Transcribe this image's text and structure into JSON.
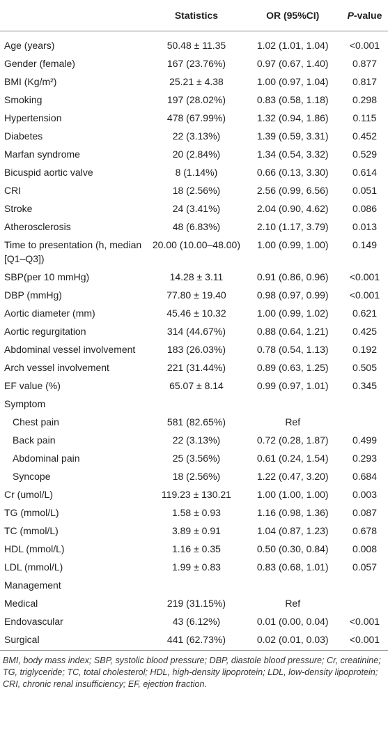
{
  "header": {
    "columns": [
      "Statistics",
      "OR (95%CI)"
    ],
    "p_value": {
      "italic": "P",
      "text": "-value"
    }
  },
  "rows": [
    {
      "label": "Age (years)",
      "stats": "50.48 ± 11.35",
      "or": "1.02 (1.01, 1.04)",
      "p": "<0.001"
    },
    {
      "label": "Gender (female)",
      "stats": "167 (23.76%)",
      "or": "0.97 (0.67, 1.40)",
      "p": "0.877"
    },
    {
      "label": "BMI (Kg/m²)",
      "stats": "25.21 ± 4.38",
      "or": "1.00 (0.97, 1.04)",
      "p": "0.817"
    },
    {
      "label": "Smoking",
      "stats": "197 (28.02%)",
      "or": "0.83 (0.58, 1.18)",
      "p": "0.298"
    },
    {
      "label": "Hypertension",
      "stats": "478 (67.99%)",
      "or": "1.32 (0.94, 1.86)",
      "p": "0.115"
    },
    {
      "label": "Diabetes",
      "stats": "22 (3.13%)",
      "or": "1.39 (0.59, 3.31)",
      "p": "0.452"
    },
    {
      "label": "Marfan syndrome",
      "stats": "20 (2.84%)",
      "or": "1.34 (0.54, 3.32)",
      "p": "0.529"
    },
    {
      "label": "Bicuspid aortic valve",
      "stats": "8 (1.14%)",
      "or": "0.66 (0.13, 3.30)",
      "p": "0.614"
    },
    {
      "label": "CRI",
      "stats": "18 (2.56%)",
      "or": "2.56 (0.99, 6.56)",
      "p": "0.051"
    },
    {
      "label": "Stroke",
      "stats": "24 (3.41%)",
      "or": "2.04 (0.90, 4.62)",
      "p": "0.086"
    },
    {
      "label": "Atherosclerosis",
      "stats": "48 (6.83%)",
      "or": "2.10 (1.17, 3.79)",
      "p": "0.013"
    },
    {
      "label": "Time to presentation (h, median [Q1–Q3])",
      "stats": "20.00 (10.00–48.00)",
      "or": "1.00 (0.99, 1.00)",
      "p": "0.149"
    },
    {
      "label": "SBP(per 10 mmHg)",
      "stats": "14.28 ± 3.11",
      "or": "0.91 (0.86, 0.96)",
      "p": "<0.001"
    },
    {
      "label": "DBP (mmHg)",
      "stats": "77.80 ± 19.40",
      "or": "0.98 (0.97, 0.99)",
      "p": "<0.001"
    },
    {
      "label": "Aortic diameter (mm)",
      "stats": "45.46 ± 10.32",
      "or": "1.00 (0.99, 1.02)",
      "p": "0.621"
    },
    {
      "label": "Aortic regurgitation",
      "stats": "314 (44.67%)",
      "or": "0.88 (0.64, 1.21)",
      "p": "0.425"
    },
    {
      "label": "Abdominal vessel involvement",
      "stats": "183 (26.03%)",
      "or": "0.78 (0.54, 1.13)",
      "p": "0.192"
    },
    {
      "label": "Arch vessel involvement",
      "stats": "221 (31.44%)",
      "or": "0.89 (0.63, 1.25)",
      "p": "0.505"
    },
    {
      "label": "EF value (%)",
      "stats": "65.07 ± 8.14",
      "or": "0.99 (0.97, 1.01)",
      "p": "0.345"
    },
    {
      "label": "Symptom",
      "subrows": [
        {
          "label": "Chest pain",
          "stats": "581 (82.65%)",
          "or": "Ref"
        },
        {
          "label": "Back pain",
          "stats": "22 (3.13%)",
          "or": "0.72 (0.28, 1.87)",
          "p": "0.499"
        },
        {
          "label": "Abdominal pain",
          "stats": "25 (3.56%)",
          "or": "0.61 (0.24, 1.54)",
          "p": "0.293"
        },
        {
          "label": "Syncope",
          "stats": "18 (2.56%)",
          "or": "1.22 (0.47, 3.20)",
          "p": "0.684"
        }
      ]
    },
    {
      "label": "Cr (umol/L)",
      "stats": "119.23 ± 130.21",
      "or": "1.00 (1.00, 1.00)",
      "p": "0.003"
    },
    {
      "label": "TG (mmol/L)",
      "stats": "1.58 ± 0.93",
      "or": "1.16 (0.98, 1.36)",
      "p": "0.087"
    },
    {
      "label": "TC (mmol/L)",
      "stats": "3.89 ± 0.91",
      "or": "1.04 (0.87, 1.23)",
      "p": "0.678"
    },
    {
      "label": "HDL (mmol/L)",
      "stats": "1.16 ± 0.35",
      "or": "0.50 (0.30, 0.84)",
      "p": "0.008"
    },
    {
      "label": "LDL (mmol/L)",
      "stats": "1.99 ± 0.83",
      "or": "0.83 (0.68, 1.01)",
      "p": "0.057"
    },
    {
      "label": "Management"
    },
    {
      "label": "Medical",
      "stats": "219 (31.15%)",
      "or": "Ref"
    },
    {
      "label": "Endovascular",
      "stats": "43 (6.12%)",
      "or": "0.01 (0.00, 0.04)",
      "p": "<0.001"
    },
    {
      "label": "Surgical",
      "stats": "441 (62.73%)",
      "or": "0.02 (0.01, 0.03)",
      "p": "<0.001"
    }
  ],
  "footnote": "BMI, body mass index; SBP, systolic blood pressure; DBP, diastole blood pressure; Cr, creatinine; TG, triglyceride; TC, total cholesterol; HDL, high-density lipoprotein; LDL, low-density lipoprotein; CRI, chronic renal insufficiency; EF, ejection fraction."
}
